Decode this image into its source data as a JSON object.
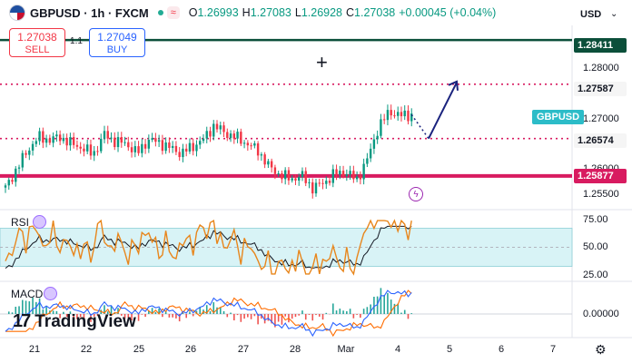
{
  "header": {
    "symbol": "GBPUSD · 1h · FXCM",
    "open_label": "O",
    "open": "1.26993",
    "high_label": "H",
    "high": "1.27083",
    "low_label": "L",
    "low": "1.26928",
    "close_label": "C",
    "close": "1.27038",
    "change": "+0.00045 (+0.04%)"
  },
  "trade": {
    "sell_price": "1.27038",
    "sell_label": "SELL",
    "spread": "1.1",
    "buy_price": "1.27049",
    "buy_label": "BUY"
  },
  "scale": {
    "currency": "USD",
    "labels": [
      "1.28000",
      "1.27000",
      "1.26000",
      "1.25500"
    ],
    "tags": [
      {
        "value": "1.28411",
        "color": "#0b4f3a"
      },
      {
        "value": "1.27587",
        "color": "#f5f5f5"
      },
      {
        "value": "1.26574",
        "color": "#f5f5f5"
      },
      {
        "value": "1.25877",
        "color": "#d81b60"
      }
    ],
    "symbol_tag": "GBPUSD"
  },
  "rsi": {
    "label": "RSI",
    "levels": [
      "75.00",
      "50.00",
      "25.00"
    ]
  },
  "macd": {
    "label": "MACD",
    "levels": [
      "0.00000"
    ]
  },
  "time_axis": [
    "21",
    "22",
    "25",
    "26",
    "27",
    "28",
    "Mar",
    "4",
    "5",
    "6",
    "7"
  ],
  "watermark": "TradingView",
  "chart_data": {
    "type": "candlestick",
    "symbol": "GBPUSD",
    "ylim": [
      1.2535,
      1.2865
    ],
    "x": [
      "21",
      "22",
      "25",
      "26",
      "27",
      "28",
      "Mar",
      "4"
    ],
    "close_path": [
      1.2565,
      1.26,
      1.2635,
      1.266,
      1.2655,
      1.266,
      1.2648,
      1.264,
      1.2628,
      1.2665,
      1.2652,
      1.2648,
      1.263,
      1.2655,
      1.265,
      1.264,
      1.263,
      1.2642,
      1.2655,
      1.2682,
      1.2668,
      1.266,
      1.2648,
      1.2635,
      1.2605,
      1.259,
      1.2582,
      1.2588,
      1.2565,
      1.2575,
      1.2592,
      1.2595,
      1.258,
      1.262,
      1.268,
      1.2708,
      1.27,
      1.2702
    ],
    "horizontal_levels": [
      {
        "value": 1.28411,
        "style": "solid"
      },
      {
        "value": 1.27587,
        "style": "dotted"
      },
      {
        "value": 1.26574,
        "style": "dotted"
      },
      {
        "value": 1.25877,
        "style": "solid"
      }
    ],
    "rsi_levels": [
      75,
      50,
      25
    ],
    "rsi_band": [
      30,
      70
    ]
  }
}
